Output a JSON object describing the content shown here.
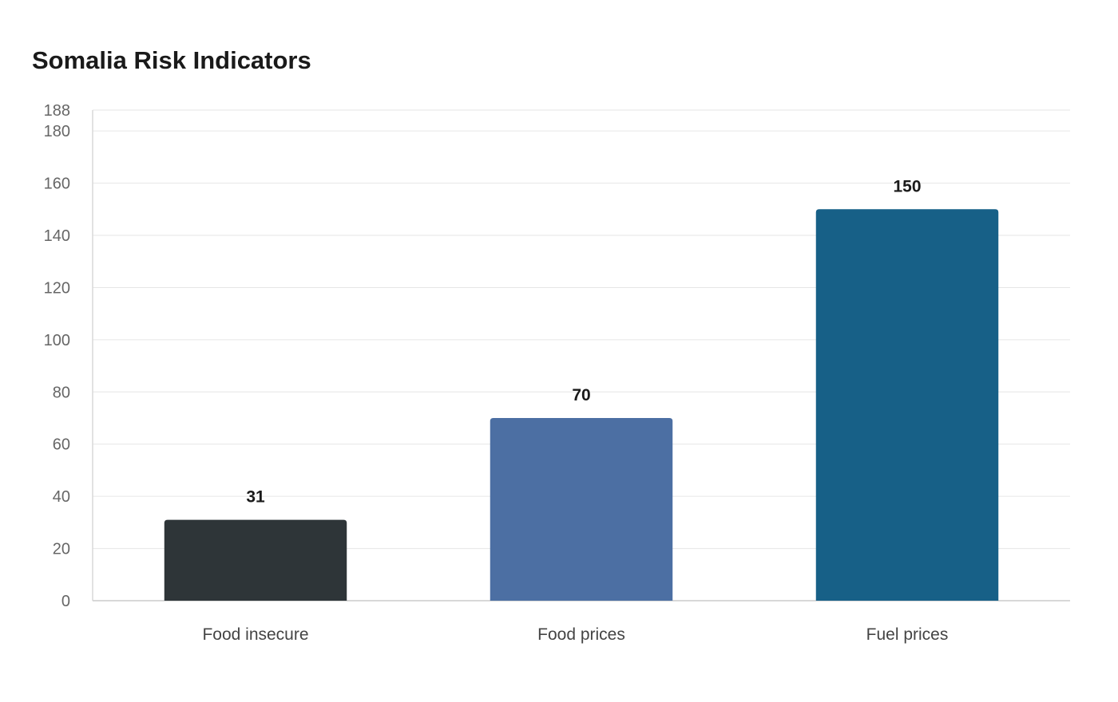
{
  "chart_data": {
    "type": "bar",
    "title": "Somalia Risk Indicators",
    "xlabel": "",
    "ylabel": "",
    "categories": [
      "Food insecure",
      "Food prices",
      "Fuel prices"
    ],
    "values": [
      31,
      70,
      150
    ],
    "colors": [
      "#2e3538",
      "#4c6fa3",
      "#176087"
    ],
    "ylim": [
      0,
      188
    ],
    "yticks": [
      0,
      20,
      40,
      60,
      80,
      100,
      120,
      140,
      160,
      180,
      188
    ],
    "grid": true,
    "legend": "none"
  }
}
